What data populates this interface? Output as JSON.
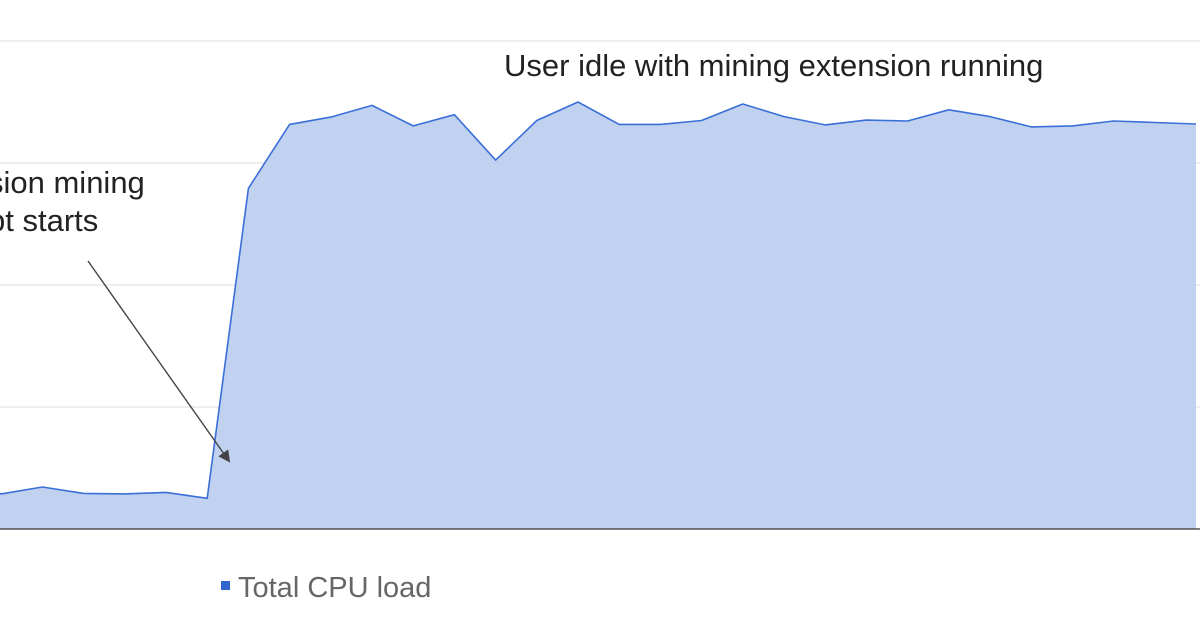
{
  "chart_data": {
    "type": "area",
    "title": "",
    "xlabel": "",
    "ylabel": "",
    "ylim": [
      0,
      100
    ],
    "grid": true,
    "legend_placement": "bottom",
    "series": [
      {
        "name": "Total CPU load",
        "color": "#3366cc",
        "values": [
          9.5,
          7.2,
          8.6,
          7.3,
          7.2,
          7.5,
          6.3,
          69.8,
          82.9,
          84.4,
          86.8,
          82.6,
          84.9,
          75.6,
          83.7,
          87.5,
          82.9,
          82.9,
          83.7,
          87.1,
          84.5,
          82.8,
          83.8,
          83.6,
          85.9,
          84.5,
          82.4,
          82.6,
          83.6,
          83.3,
          83.0
        ]
      }
    ],
    "annotations": [
      {
        "id": "mining_start",
        "lines": [
          "sion mining",
          "pt starts"
        ]
      },
      {
        "id": "user_idle",
        "lines": [
          "User idle with mining extension running"
        ]
      }
    ]
  }
}
